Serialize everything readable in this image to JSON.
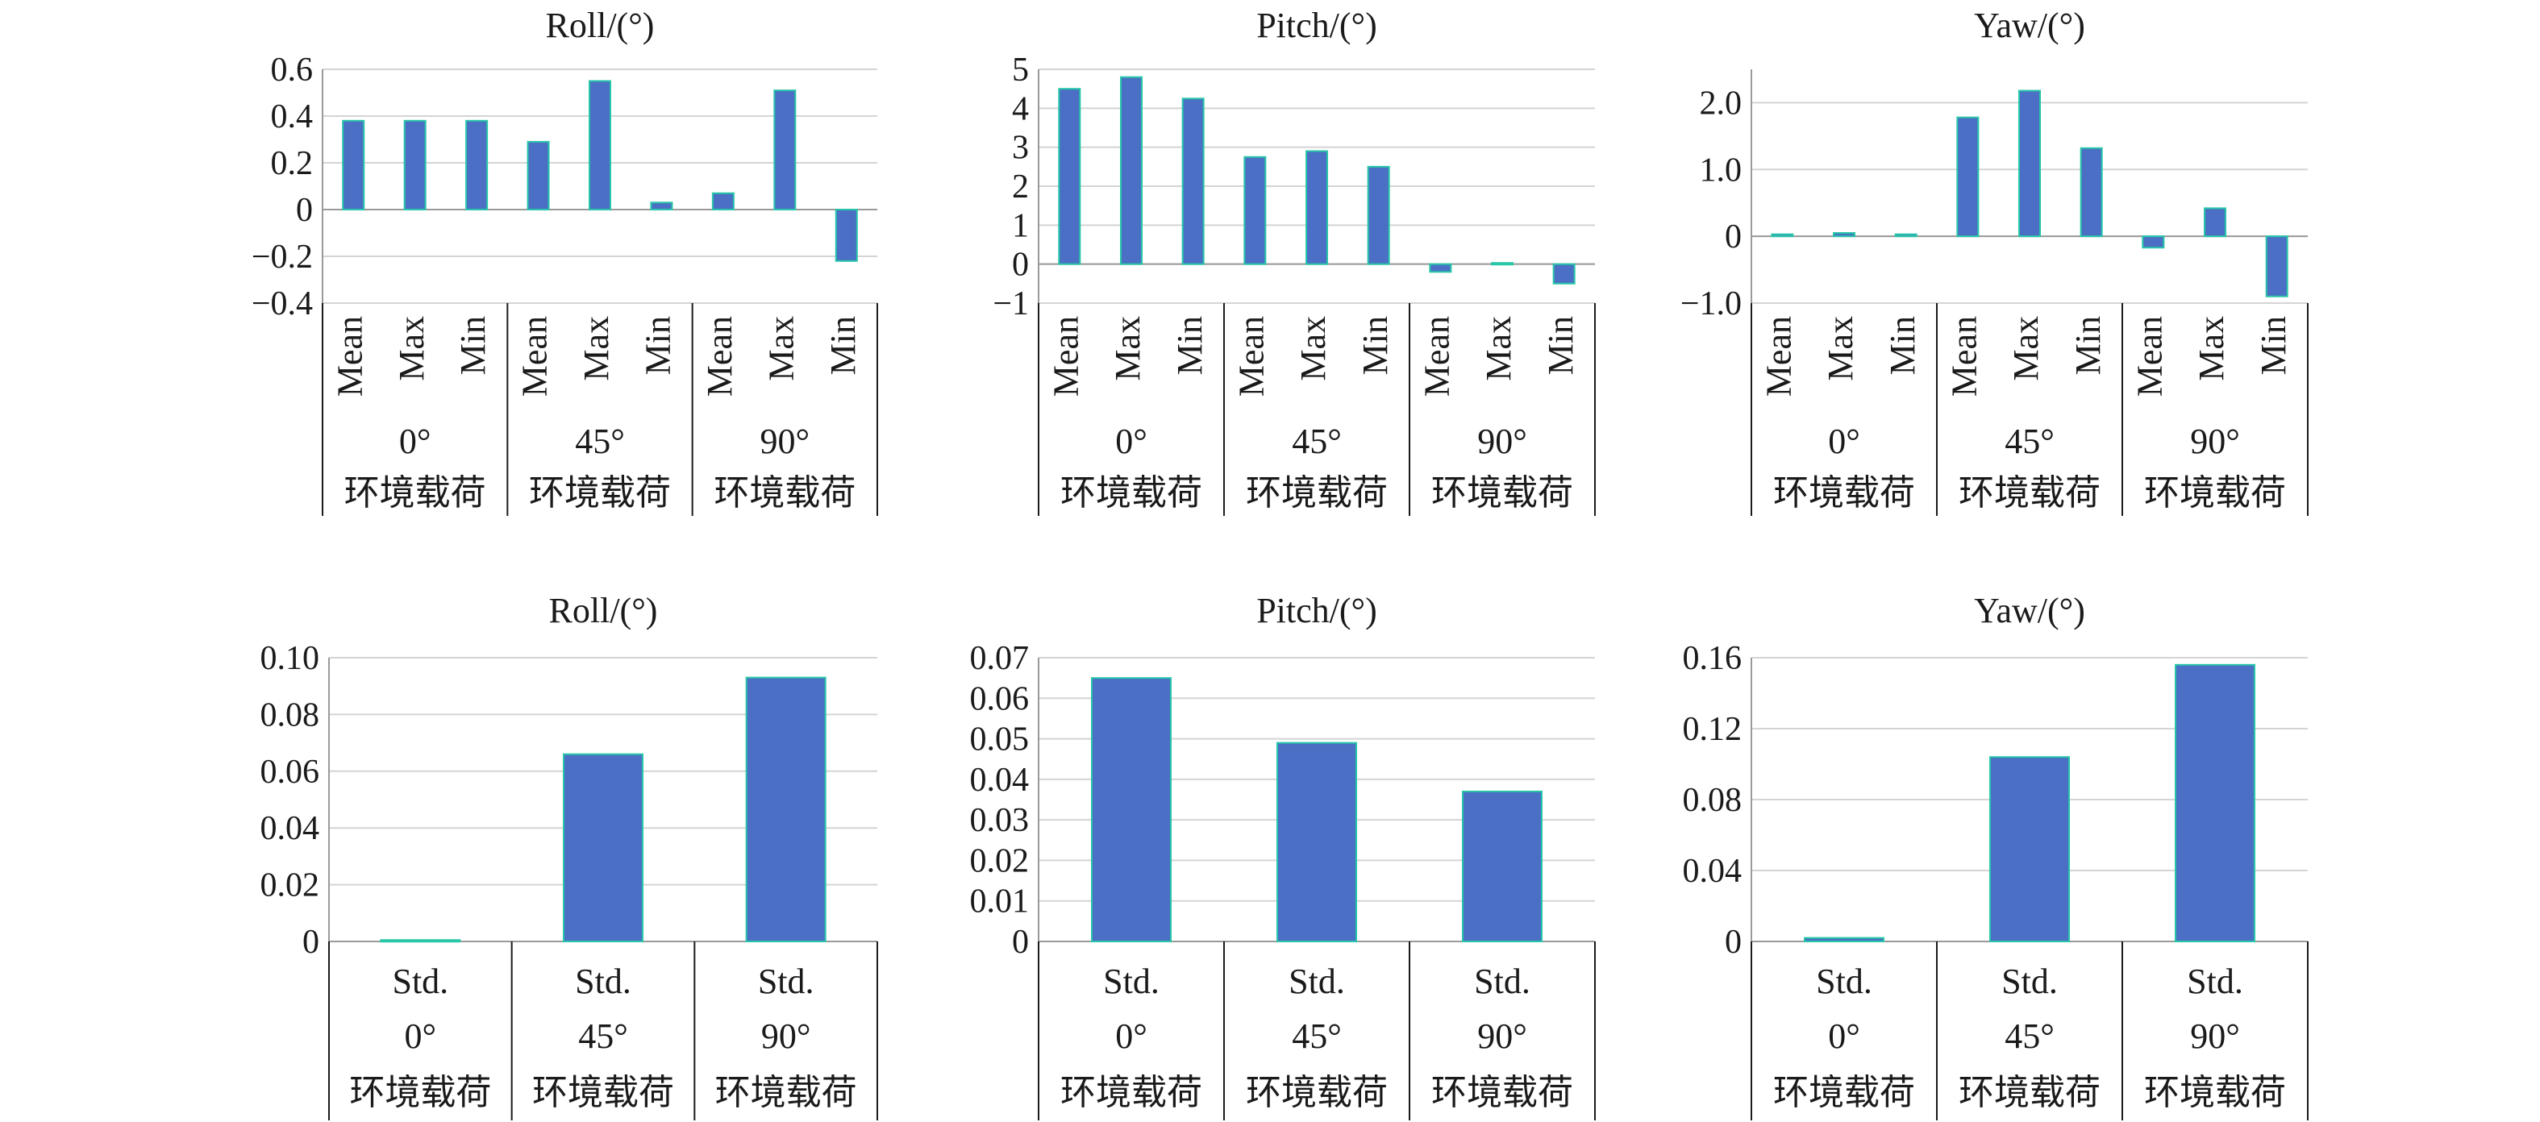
{
  "chart_data": [
    {
      "type": "bar",
      "title": "Roll/(°)",
      "ylim": [
        -0.4,
        0.6
      ],
      "yticks": [
        -0.4,
        -0.2,
        0,
        0.2,
        0.4,
        0.6
      ],
      "ytick_labels": [
        "−0.4",
        "−0.2",
        "0",
        "0.2",
        "0.4",
        "0.6"
      ],
      "groups": [
        {
          "line1": "0°",
          "line2": "环境载荷",
          "categories": [
            "Mean",
            "Max",
            "Min"
          ],
          "values": [
            0.38,
            0.38,
            0.38
          ]
        },
        {
          "line1": "45°",
          "line2": "环境载荷",
          "categories": [
            "Mean",
            "Max",
            "Min"
          ],
          "values": [
            0.29,
            0.55,
            0.03
          ]
        },
        {
          "line1": "90°",
          "line2": "环境载荷",
          "categories": [
            "Mean",
            "Max",
            "Min"
          ],
          "values": [
            0.07,
            0.51,
            -0.22
          ]
        }
      ],
      "grid": true
    },
    {
      "type": "bar",
      "title": "Pitch/(°)",
      "ylim": [
        -1,
        5
      ],
      "yticks": [
        -1,
        0,
        1,
        2,
        3,
        4,
        5
      ],
      "ytick_labels": [
        "−1",
        "0",
        "1",
        "2",
        "3",
        "4",
        "5"
      ],
      "groups": [
        {
          "line1": "0°",
          "line2": "环境载荷",
          "categories": [
            "Mean",
            "Max",
            "Min"
          ],
          "values": [
            4.5,
            4.8,
            4.25
          ]
        },
        {
          "line1": "45°",
          "line2": "环境载荷",
          "categories": [
            "Mean",
            "Max",
            "Min"
          ],
          "values": [
            2.75,
            2.9,
            2.5
          ]
        },
        {
          "line1": "90°",
          "line2": "环境载荷",
          "categories": [
            "Mean",
            "Max",
            "Min"
          ],
          "values": [
            -0.2,
            0.03,
            -0.5
          ]
        }
      ],
      "grid": true
    },
    {
      "type": "bar",
      "title": "Yaw/(°)",
      "ylim": [
        -1.0,
        2.5
      ],
      "yticks": [
        -1.0,
        0,
        1.0,
        2.0
      ],
      "ytick_labels": [
        "−1.0",
        "0",
        "1.0",
        "2.0"
      ],
      "groups": [
        {
          "line1": "0°",
          "line2": "环境载荷",
          "categories": [
            "Mean",
            "Max",
            "Min"
          ],
          "values": [
            0.03,
            0.05,
            0.03
          ]
        },
        {
          "line1": "45°",
          "line2": "环境载荷",
          "categories": [
            "Mean",
            "Max",
            "Min"
          ],
          "values": [
            1.78,
            2.18,
            1.32
          ]
        },
        {
          "line1": "90°",
          "line2": "环境载荷",
          "categories": [
            "Mean",
            "Max",
            "Min"
          ],
          "values": [
            -0.17,
            0.42,
            -0.9
          ]
        }
      ],
      "grid": true
    },
    {
      "type": "bar",
      "title": "Roll/(°)",
      "ylim": [
        0,
        0.1
      ],
      "yticks": [
        0,
        0.02,
        0.04,
        0.06,
        0.08,
        0.1
      ],
      "ytick_labels": [
        "0",
        "0.02",
        "0.04",
        "0.06",
        "0.08",
        "0.10"
      ],
      "groups": [
        {
          "line1": "0°",
          "line2": "环境载荷",
          "categories": [
            "Std."
          ],
          "values": [
            0.0005
          ]
        },
        {
          "line1": "45°",
          "line2": "环境载荷",
          "categories": [
            "Std."
          ],
          "values": [
            0.066
          ]
        },
        {
          "line1": "90°",
          "line2": "环境载荷",
          "categories": [
            "Std."
          ],
          "values": [
            0.093
          ]
        }
      ],
      "grid": true
    },
    {
      "type": "bar",
      "title": "Pitch/(°)",
      "ylim": [
        0,
        0.07
      ],
      "yticks": [
        0,
        0.01,
        0.02,
        0.03,
        0.04,
        0.05,
        0.06,
        0.07
      ],
      "ytick_labels": [
        "0",
        "0.01",
        "0.02",
        "0.03",
        "0.04",
        "0.05",
        "0.06",
        "0.07"
      ],
      "groups": [
        {
          "line1": "0°",
          "line2": "环境载荷",
          "categories": [
            "Std."
          ],
          "values": [
            0.065
          ]
        },
        {
          "line1": "45°",
          "line2": "环境载荷",
          "categories": [
            "Std."
          ],
          "values": [
            0.049
          ]
        },
        {
          "line1": "90°",
          "line2": "环境载荷",
          "categories": [
            "Std."
          ],
          "values": [
            0.037
          ]
        }
      ],
      "grid": true
    },
    {
      "type": "bar",
      "title": "Yaw/(°)",
      "ylim": [
        0,
        0.16
      ],
      "yticks": [
        0,
        0.04,
        0.08,
        0.12,
        0.16
      ],
      "ytick_labels": [
        "0",
        "0.04",
        "0.08",
        "0.12",
        "0.16"
      ],
      "groups": [
        {
          "line1": "0°",
          "line2": "环境载荷",
          "categories": [
            "Std."
          ],
          "values": [
            0.002
          ]
        },
        {
          "line1": "45°",
          "line2": "环境载荷",
          "categories": [
            "Std."
          ],
          "values": [
            0.104
          ]
        },
        {
          "line1": "90°",
          "line2": "环境载荷",
          "categories": [
            "Std."
          ],
          "values": [
            0.156
          ]
        }
      ],
      "grid": true
    }
  ]
}
